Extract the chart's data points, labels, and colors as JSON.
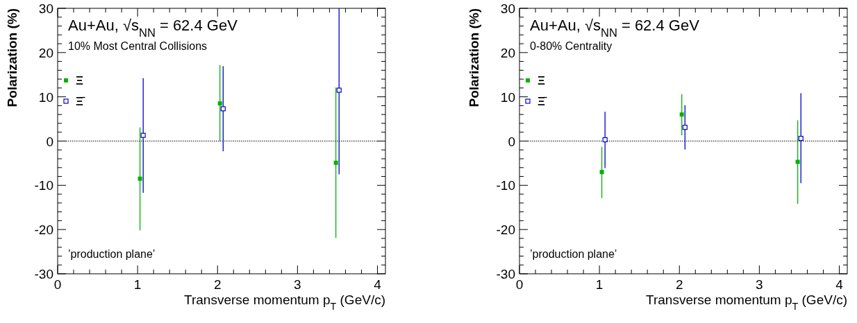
{
  "chart_data": [
    {
      "type": "scatter",
      "title": "Au+Au, √s$_{NN}$ = 62.4 GeV",
      "subtitle": "10% Most Central Collisions",
      "xlabel": "Transverse momentum p$_{T}$ (GeV/c)",
      "ylabel": "Polarization (%)",
      "annotations": [
        "’production plane’"
      ],
      "marker": "square",
      "legend": "top left",
      "xlim": [
        0,
        4.1
      ],
      "ylim": [
        -30,
        30
      ],
      "xticks": [
        0,
        {
          "value": 0.2,
          "label": null
        },
        {
          "value": 0.4,
          "label": null
        },
        {
          "value": 0.6,
          "label": null
        },
        {
          "value": 0.8,
          "label": null
        },
        1,
        {
          "value": 1.2,
          "label": null
        },
        {
          "value": 1.4,
          "label": null
        },
        {
          "value": 1.6,
          "label": null
        },
        {
          "value": 1.8,
          "label": null
        },
        2,
        {
          "value": 2.2,
          "label": null
        },
        {
          "value": 2.4,
          "label": null
        },
        {
          "value": 2.6,
          "label": null
        },
        {
          "value": 2.8,
          "label": null
        },
        3,
        {
          "value": 3.2,
          "label": null
        },
        {
          "value": 3.4,
          "label": null
        },
        {
          "value": 3.6,
          "label": null
        },
        {
          "value": 3.8,
          "label": null
        },
        4
      ],
      "yticks": [
        -30,
        {
          "value": -28,
          "label": null
        },
        {
          "value": -26,
          "label": null
        },
        {
          "value": -24,
          "label": null
        },
        {
          "value": -22,
          "label": null
        },
        -20,
        {
          "value": -18,
          "label": null
        },
        {
          "value": -16,
          "label": null
        },
        {
          "value": -14,
          "label": null
        },
        {
          "value": -12,
          "label": null
        },
        -10,
        {
          "value": -8,
          "label": null
        },
        {
          "value": -6,
          "label": null
        },
        {
          "value": -4,
          "label": null
        },
        {
          "value": -2,
          "label": null
        },
        0,
        {
          "value": 2,
          "label": null
        },
        {
          "value": 4,
          "label": null
        },
        {
          "value": 6,
          "label": null
        },
        {
          "value": 8,
          "label": null
        },
        10,
        {
          "value": 12,
          "label": null
        },
        {
          "value": 14,
          "label": null
        },
        {
          "value": 16,
          "label": null
        },
        {
          "value": 18,
          "label": null
        },
        20,
        {
          "value": 22,
          "label": null
        },
        {
          "value": 24,
          "label": null
        },
        {
          "value": 26,
          "label": null
        },
        {
          "value": 28,
          "label": null
        },
        30
      ],
      "ref_lines": [
        {
          "axis": "y",
          "value": 0,
          "line_style": "dotted",
          "color": "#000000"
        }
      ],
      "series": [
        {
          "name": "Ξ",
          "color": "#00b200",
          "x": [
            1.03,
            2.03,
            3.48
          ],
          "values": [
            -8.5,
            8.5,
            -4.9
          ],
          "errors": [
            [
              -20.2,
              3.1
            ],
            [
              0,
              17.2
            ],
            [
              -21.9,
              12.1
            ]
          ]
        },
        {
          "name": "Ξ̄",
          "color": "#0000c8",
          "x": [
            1.07,
            2.07,
            3.52
          ],
          "values": [
            1.3,
            7.3,
            11.5
          ],
          "errors": [
            [
              -11.7,
              14.2
            ],
            [
              -2.3,
              16.9
            ],
            [
              -7.5,
              30
            ]
          ]
        }
      ]
    },
    {
      "type": "scatter",
      "title": "Au+Au, √s$_{NN}$ = 62.4 GeV",
      "subtitle": "0-80% Centrality",
      "xlabel": "Transverse momentum p$_{T}$ (GeV/c)",
      "ylabel": "Polarization (%)",
      "annotations": [
        "’production plane’"
      ],
      "marker": "square",
      "legend": "top left",
      "xlim": [
        0,
        4.1
      ],
      "ylim": [
        -30,
        30
      ],
      "xticks": [
        0,
        {
          "value": 0.2,
          "label": null
        },
        {
          "value": 0.4,
          "label": null
        },
        {
          "value": 0.6,
          "label": null
        },
        {
          "value": 0.8,
          "label": null
        },
        1,
        {
          "value": 1.2,
          "label": null
        },
        {
          "value": 1.4,
          "label": null
        },
        {
          "value": 1.6,
          "label": null
        },
        {
          "value": 1.8,
          "label": null
        },
        2,
        {
          "value": 2.2,
          "label": null
        },
        {
          "value": 2.4,
          "label": null
        },
        {
          "value": 2.6,
          "label": null
        },
        {
          "value": 2.8,
          "label": null
        },
        3,
        {
          "value": 3.2,
          "label": null
        },
        {
          "value": 3.4,
          "label": null
        },
        {
          "value": 3.6,
          "label": null
        },
        {
          "value": 3.8,
          "label": null
        },
        4
      ],
      "yticks": [
        -30,
        {
          "value": -28,
          "label": null
        },
        {
          "value": -26,
          "label": null
        },
        {
          "value": -24,
          "label": null
        },
        {
          "value": -22,
          "label": null
        },
        -20,
        {
          "value": -18,
          "label": null
        },
        {
          "value": -16,
          "label": null
        },
        {
          "value": -14,
          "label": null
        },
        {
          "value": -12,
          "label": null
        },
        -10,
        {
          "value": -8,
          "label": null
        },
        {
          "value": -6,
          "label": null
        },
        {
          "value": -4,
          "label": null
        },
        {
          "value": -2,
          "label": null
        },
        0,
        {
          "value": 2,
          "label": null
        },
        {
          "value": 4,
          "label": null
        },
        {
          "value": 6,
          "label": null
        },
        {
          "value": 8,
          "label": null
        },
        10,
        {
          "value": 12,
          "label": null
        },
        {
          "value": 14,
          "label": null
        },
        {
          "value": 16,
          "label": null
        },
        {
          "value": 18,
          "label": null
        },
        20,
        {
          "value": 22,
          "label": null
        },
        {
          "value": 24,
          "label": null
        },
        {
          "value": 26,
          "label": null
        },
        {
          "value": 28,
          "label": null
        },
        30
      ],
      "ref_lines": [
        {
          "axis": "y",
          "value": 0,
          "line_style": "dotted",
          "color": "#000000"
        }
      ],
      "series": [
        {
          "name": "Ξ",
          "color": "#00b200",
          "x": [
            1.03,
            2.03,
            3.48
          ],
          "values": [
            -7.0,
            6.0,
            -4.7
          ],
          "errors": [
            [
              -12.9,
              -1.3
            ],
            [
              1.3,
              10.6
            ],
            [
              -14.2,
              4.7
            ]
          ]
        },
        {
          "name": "Ξ̄",
          "color": "#0000c8",
          "x": [
            1.07,
            2.07,
            3.52
          ],
          "values": [
            0.3,
            3.1,
            0.6
          ],
          "errors": [
            [
              -6.1,
              6.6
            ],
            [
              -1.9,
              8.1
            ],
            [
              -9.5,
              10.8
            ]
          ]
        }
      ]
    }
  ]
}
